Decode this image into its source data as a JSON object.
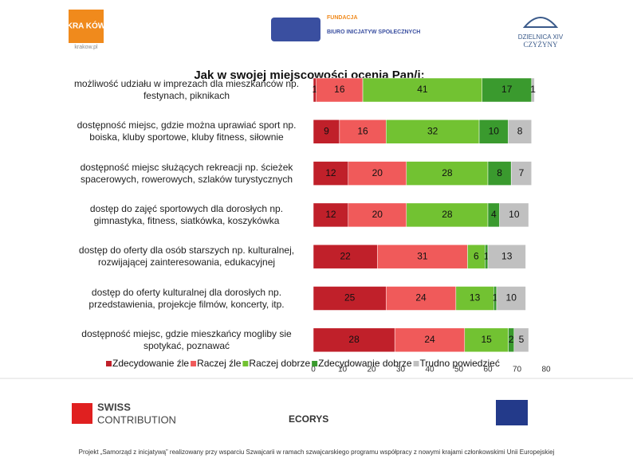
{
  "chart_data": {
    "type": "stacked-bar-horizontal",
    "title": "Jak w swojej miejscowości ocenia Pan/i:",
    "categories": [
      "możliwość udziału w imprezach dla mieszkańców np. festynach, piknikach",
      "dostępność miejsc, gdzie można uprawiać sport np. boiska, kluby sportowe, kluby fitness, siłownie",
      "dostępność miejsc służących rekreacji np. ścieżek spacerowych, rowerowych, szlaków turystycznych",
      "dostęp do zajęć sportowych dla dorosłych np. gimnastyka, fitness, siatkówka, koszykówka",
      "dostęp do oferty dla osób starszych np. kulturalnej, rozwijającej zainteresowania, edukacyjnej",
      "dostęp do oferty kulturalnej dla dorosłych np. przedstawienia, projekcje filmów, koncerty, itp.",
      "dostępność miejsc, gdzie mieszkańcy mogliby sie spotykać, poznawać"
    ],
    "series": [
      {
        "name": "Zdecydowanie źle",
        "color": "#c0202a",
        "values": [
          1,
          9,
          12,
          12,
          22,
          25,
          28
        ]
      },
      {
        "name": "Raczej źle",
        "color": "#f05a5a",
        "values": [
          16,
          16,
          20,
          20,
          31,
          24,
          24
        ]
      },
      {
        "name": "Raczej dobrze",
        "color": "#72c232",
        "values": [
          41,
          32,
          28,
          28,
          6,
          13,
          15
        ]
      },
      {
        "name": "Zdecydowanie dobrze",
        "color": "#3a9a2e",
        "values": [
          17,
          10,
          8,
          4,
          1,
          1,
          2
        ]
      },
      {
        "name": "Trudno powiedzieć",
        "color": "#c0c0c0",
        "values": [
          1,
          8,
          7,
          10,
          13,
          10,
          5
        ]
      }
    ],
    "xlim": [
      0,
      80
    ],
    "xticks": [
      0,
      10,
      20,
      30,
      40,
      50,
      60,
      70,
      80
    ]
  },
  "header": {
    "krakow": "KRA KÓW",
    "krakow_url": "krakow.pl",
    "fundacja": "FUNDACJA",
    "bis": "BIURO INICJATYW SPOŁECZNYCH",
    "dzielnica": "DZIELNICA XIV",
    "czyzyny": "CZYŻYNY"
  },
  "footer": {
    "swiss": "SWISS",
    "contribution": "CONTRIBUTION",
    "ecorys": "ECORYS",
    "note": "Projekt „Samorząd z inicjatywą” realizowany przy wsparciu Szwajcarii w ramach szwajcarskiego programu współpracy z nowymi krajami członkowskimi Unii Europejskiej"
  }
}
